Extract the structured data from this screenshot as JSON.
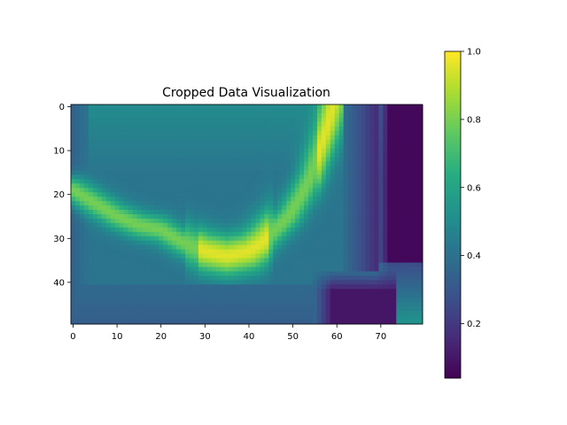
{
  "chart_data": {
    "type": "heatmap",
    "title": "Cropped Data Visualization",
    "xlabel": "",
    "ylabel": "",
    "colormap": "viridis",
    "grid": false,
    "n_cols": 80,
    "n_rows": 50,
    "x_ticks": [
      0,
      10,
      20,
      30,
      40,
      50,
      60,
      70
    ],
    "y_ticks": [
      0,
      10,
      20,
      30,
      40
    ],
    "colorbar": {
      "range": [
        0.04,
        1.0
      ],
      "ticks": [
        0.2,
        0.4,
        0.6,
        0.8,
        1.0
      ],
      "tick_labels": [
        "0.2",
        "0.4",
        "0.6",
        "0.8",
        "1.0"
      ]
    },
    "features": {
      "background_value": 0.42,
      "upper_field_value": 0.5,
      "arc": {
        "peak_value": 0.96,
        "points": [
          [
            0,
            19
          ],
          [
            5,
            22
          ],
          [
            10,
            25
          ],
          [
            15,
            27
          ],
          [
            20,
            28
          ],
          [
            25,
            31
          ],
          [
            30,
            33
          ],
          [
            35,
            34
          ],
          [
            40,
            33
          ],
          [
            43,
            31
          ],
          [
            46,
            28
          ],
          [
            49,
            25
          ],
          [
            52,
            20
          ],
          [
            54,
            16
          ],
          [
            56,
            10
          ],
          [
            58,
            4
          ],
          [
            59,
            0
          ]
        ]
      },
      "dark_right_region": {
        "x_start": 70,
        "value": 0.06
      },
      "dark_bottom_region": {
        "x_start": 55,
        "y_start": 38,
        "value": 0.1
      },
      "left_edge_value": 0.35
    }
  }
}
